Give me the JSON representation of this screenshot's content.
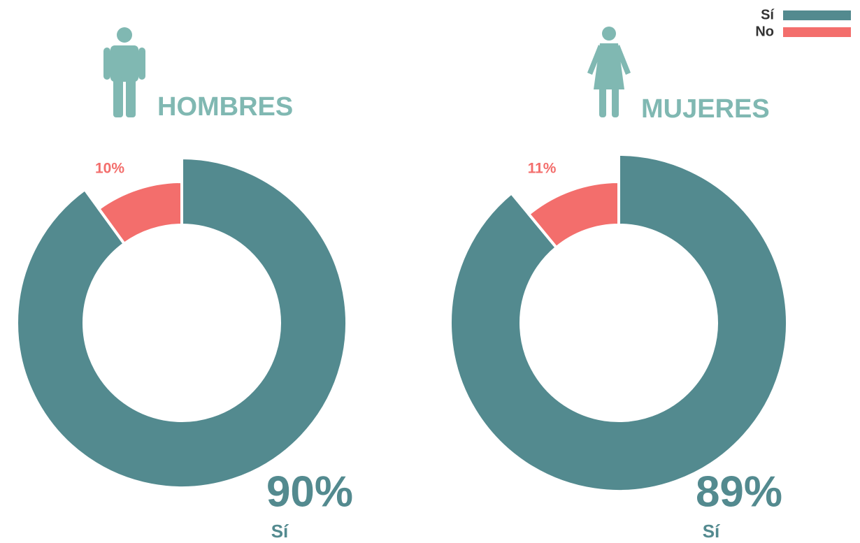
{
  "chart_data": [
    {
      "type": "pie",
      "title": "HOMBRES",
      "categories": [
        "Sí",
        "No"
      ],
      "values": [
        90,
        10
      ],
      "value_labels": [
        "90%",
        "10%"
      ],
      "colors": [
        "#538a8f",
        "#f36e6c"
      ],
      "legend": "top-right"
    },
    {
      "type": "pie",
      "title": "MUJERES",
      "categories": [
        "Sí",
        "No"
      ],
      "values": [
        89,
        11
      ],
      "value_labels": [
        "89%",
        "11%"
      ],
      "colors": [
        "#538a8f",
        "#f36e6c"
      ]
    }
  ]
}
